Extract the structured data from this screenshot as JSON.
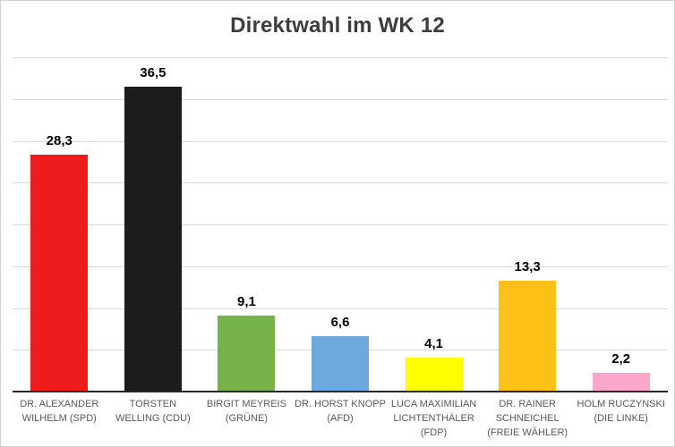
{
  "title": "Direktwahl im WK 12",
  "chart_data": {
    "type": "bar",
    "title": "Direktwahl im WK 12",
    "categories": [
      "DR. ALEXANDER WILHELM (SPD)",
      "TORSTEN WELLING (CDU)",
      "BIRGIT MEYREIS (GRÜNE)",
      "DR. HORST KNOPP (AFD)",
      "LUCA MAXIMILIAN LICHTENTHÄLER (FDP)",
      "DR. RAINER SCHNEICHEL (FREIE WÄHLER)",
      "HOLM RUCZYNSKI (DIE LINKE)"
    ],
    "parties": [
      "SPD",
      "CDU",
      "GRÜNE",
      "AFD",
      "FDP",
      "FREIE WÄHLER",
      "DIE LINKE"
    ],
    "values": [
      28.3,
      36.5,
      9.1,
      6.6,
      4.1,
      13.3,
      2.2
    ],
    "value_labels": [
      "28,3",
      "36,5",
      "9,1",
      "6,6",
      "4,1",
      "13,3",
      "2,2"
    ],
    "bar_colors": [
      "#ee1c1c",
      "#1c1c1c",
      "#76b24a",
      "#6fa8dc",
      "#ffff00",
      "#fcc016",
      "#fba7cb"
    ],
    "xlabel": "",
    "ylabel": "",
    "ylim": [
      0,
      40
    ],
    "gridline_step": 5,
    "grid": true,
    "legend": false,
    "y_tick_labels_shown": false
  },
  "colors": {
    "background": "#ffffff",
    "border": "#d2d2d2",
    "grid": "#d9d9d9",
    "axis": "#262626",
    "title_text": "#3d3d3d",
    "category_text": "#595959",
    "value_text": "#000000"
  }
}
